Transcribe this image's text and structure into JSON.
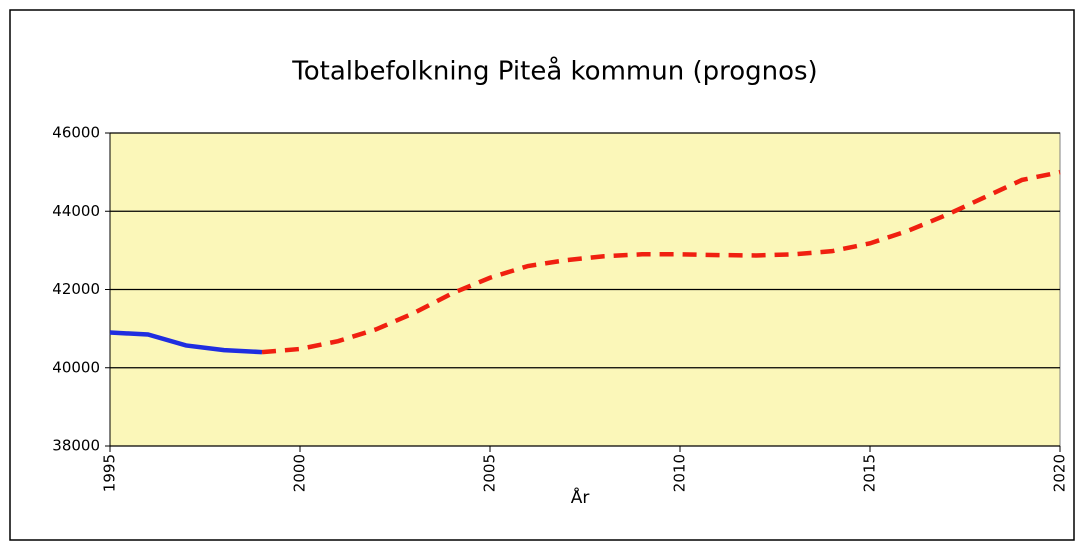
{
  "chart_data": {
    "type": "line",
    "title": "Totalbefolkning Piteå kommun (prognos)",
    "x_label": "År",
    "x": [
      1995,
      1996,
      1997,
      1998,
      1999,
      2000,
      2001,
      2002,
      2003,
      2004,
      2005,
      2006,
      2007,
      2008,
      2009,
      2010,
      2011,
      2012,
      2013,
      2014,
      2015,
      2016,
      2017,
      2018,
      2019,
      2020
    ],
    "series": [
      {
        "color": "#1f2ee0",
        "dashed": false,
        "values": [
          40900,
          40850,
          40570,
          40450,
          40400,
          null,
          null,
          null,
          null,
          null,
          null,
          null,
          null,
          null,
          null,
          null,
          null,
          null,
          null,
          null,
          null,
          null,
          null,
          null,
          null,
          null
        ]
      },
      {
        "color": "#f02010",
        "dashed": true,
        "values": [
          null,
          null,
          null,
          null,
          40400,
          40480,
          40680,
          40980,
          41400,
          41900,
          42300,
          42600,
          42750,
          42850,
          42900,
          42900,
          42880,
          42870,
          42900,
          42980,
          43180,
          43500,
          43900,
          44350,
          44800,
          45000
        ]
      }
    ],
    "xlim": [
      1995,
      2020
    ],
    "xticks": [
      1995,
      2000,
      2005,
      2010,
      2015,
      2020
    ],
    "ylim": [
      38000,
      46000
    ],
    "yticks": [
      38000,
      40000,
      42000,
      44000,
      46000
    ],
    "grid": true
  }
}
